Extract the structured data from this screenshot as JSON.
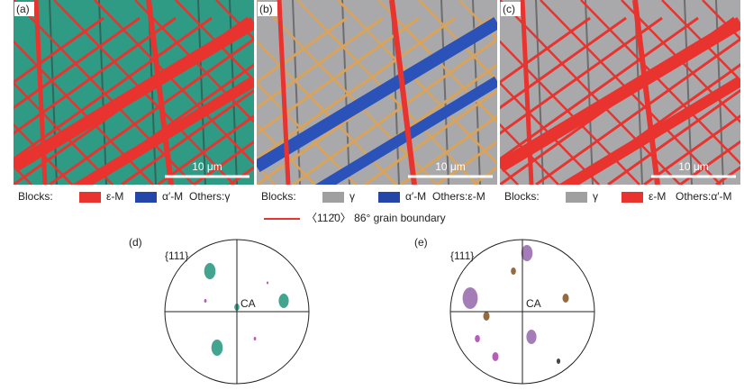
{
  "panels": [
    {
      "label": "(a)",
      "scale_bar": "10 μm",
      "base": "#2f9b84",
      "band": "#e8332f",
      "legend": {
        "prefix": "Blocks:",
        "items": [
          {
            "name": "ε-M",
            "color": "#e8332f"
          },
          {
            "name": "α′-M",
            "color": "#2346a8"
          }
        ],
        "others": "Others:γ"
      }
    },
    {
      "label": "(b)",
      "scale_bar": "10 μm",
      "base": "#a9a9ab",
      "band": "#2a52b8",
      "legend": {
        "prefix": "Blocks:",
        "items": [
          {
            "name": "γ",
            "color": "#a0a0a0"
          },
          {
            "name": "α′-M",
            "color": "#2346a8"
          }
        ],
        "others": "Others:ε-M"
      }
    },
    {
      "label": "(c)",
      "scale_bar": "10 μm",
      "base": "#a9a9ab",
      "band": "#e8332f",
      "legend": {
        "prefix": "Blocks:",
        "items": [
          {
            "name": "γ",
            "color": "#a0a0a0"
          },
          {
            "name": "ε-M",
            "color": "#e8332f"
          }
        ],
        "others": "Others:α′-M"
      }
    }
  ],
  "boundary_legend": {
    "label": "〈112̄0〉 86° grain boundary",
    "color": "#e8332f"
  },
  "pole_figures": [
    {
      "label": "(d)",
      "plane": "{111}",
      "center_label": "CA"
    },
    {
      "label": "(e)",
      "plane": "{111}",
      "center_label": "CA"
    }
  ]
}
